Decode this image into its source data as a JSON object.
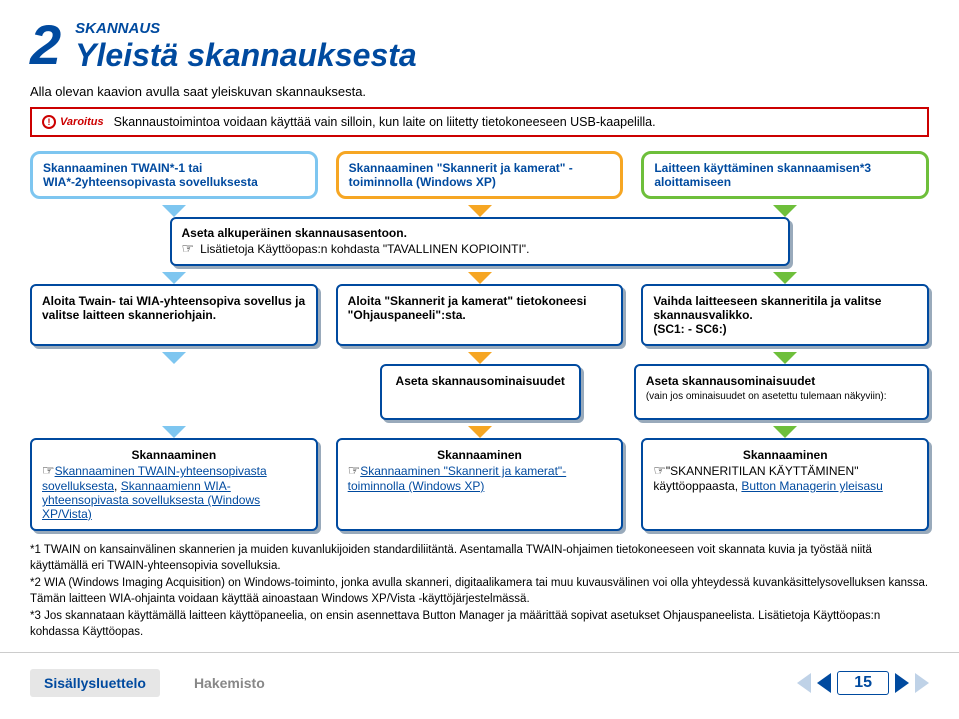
{
  "header": {
    "chapter_number": "2",
    "kicker": "SKANNAUS",
    "title": "Yleistä skannauksesta"
  },
  "intro": "Alla olevan kaavion avulla saat yleiskuvan skannauksesta.",
  "warning": {
    "label": "Varoitus",
    "text": "Skannaustoimintoa voidaan käyttää vain silloin, kun laite on liitetty tietokoneeseen USB-kaapelilla."
  },
  "flow": {
    "row1": {
      "left": "Skannaaminen TWAIN*-1 tai WIA*-2yhteensopivasta sovelluksesta",
      "mid": "Skannaaminen \"Skannerit ja kamerat\" -toiminnolla (Windows XP)",
      "right": "Laitteen käyttäminen skannaamisen*3 aloittamiseen"
    },
    "orig": {
      "l1": "Aseta alkuperäinen skannausasentoon.",
      "l2": "Lisätietoja Käyttöopas:n kohdasta \"TAVALLINEN KOPIOINTI\"."
    },
    "row2": {
      "left": "Aloita Twain- tai WIA-yhteensopiva sovellus ja valitse laitteen skanneriohjain.",
      "mid": "Aloita \"Skannerit ja kamerat\" tietokoneesi \"Ohjauspaneeli\":sta.",
      "right_l1": "Vaihda laitteeseen skanneritila ja valitse skannausvalikko.",
      "right_l2": "(SC1: - SC6:)"
    },
    "row3": {
      "left": "Aseta skannausominaisuudet",
      "right_l1": "Aseta skannausominaisuudet",
      "right_l2": "(vain jos ominaisuudet on asetettu tulemaan näkyviin):"
    },
    "row4": {
      "left_h": "Skannaaminen",
      "left_a": "Skannaaminen TWAIN-yhteensopivasta sovelluksesta",
      "left_sep": ", ",
      "left_b": "Skannaamienn WIA-yhteensopivasta sovelluksesta (Windows XP/Vista)",
      "mid_h": "Skannaaminen",
      "mid_a": "Skannaaminen \"Skannerit ja kamerat\"-toiminnolla (Windows XP)",
      "right_h": "Skannaaminen",
      "right_t1": "\"SKANNERITILAN KÄYTTÄMINEN\" käyttöoppaasta, ",
      "right_a": "Button Managerin yleisasu"
    }
  },
  "footnotes": {
    "n1": "*1 TWAIN on kansainvälinen skannerien ja muiden kuvanlukijoiden standardiliitäntä. Asentamalla TWAIN-ohjaimen tietokoneeseen voit skannata kuvia ja työstää niitä käyttämällä eri TWAIN-yhteensopivia sovelluksia.",
    "n2": "*2 WIA (Windows Imaging Acquisition) on Windows-toiminto, jonka avulla skanneri, digitaalikamera tai muu kuvausvälinen voi olla yhteydessä kuvankäsittelysovelluksen kanssa. Tämän laitteen WIA-ohjainta voidaan käyttää ainoastaan Windows XP/Vista -käyttöjärjestelmässä.",
    "n3": "*3 Jos skannataan käyttämällä laitteen käyttöpaneelia, on ensin asennettava Button Manager ja määrittää sopivat asetukset Ohjauspaneelista. Lisätietoja Käyttöopas:n kohdassa Käyttöopas."
  },
  "footer": {
    "toc": "Sisällysluettelo",
    "index": "Hakemisto",
    "page": "15"
  }
}
